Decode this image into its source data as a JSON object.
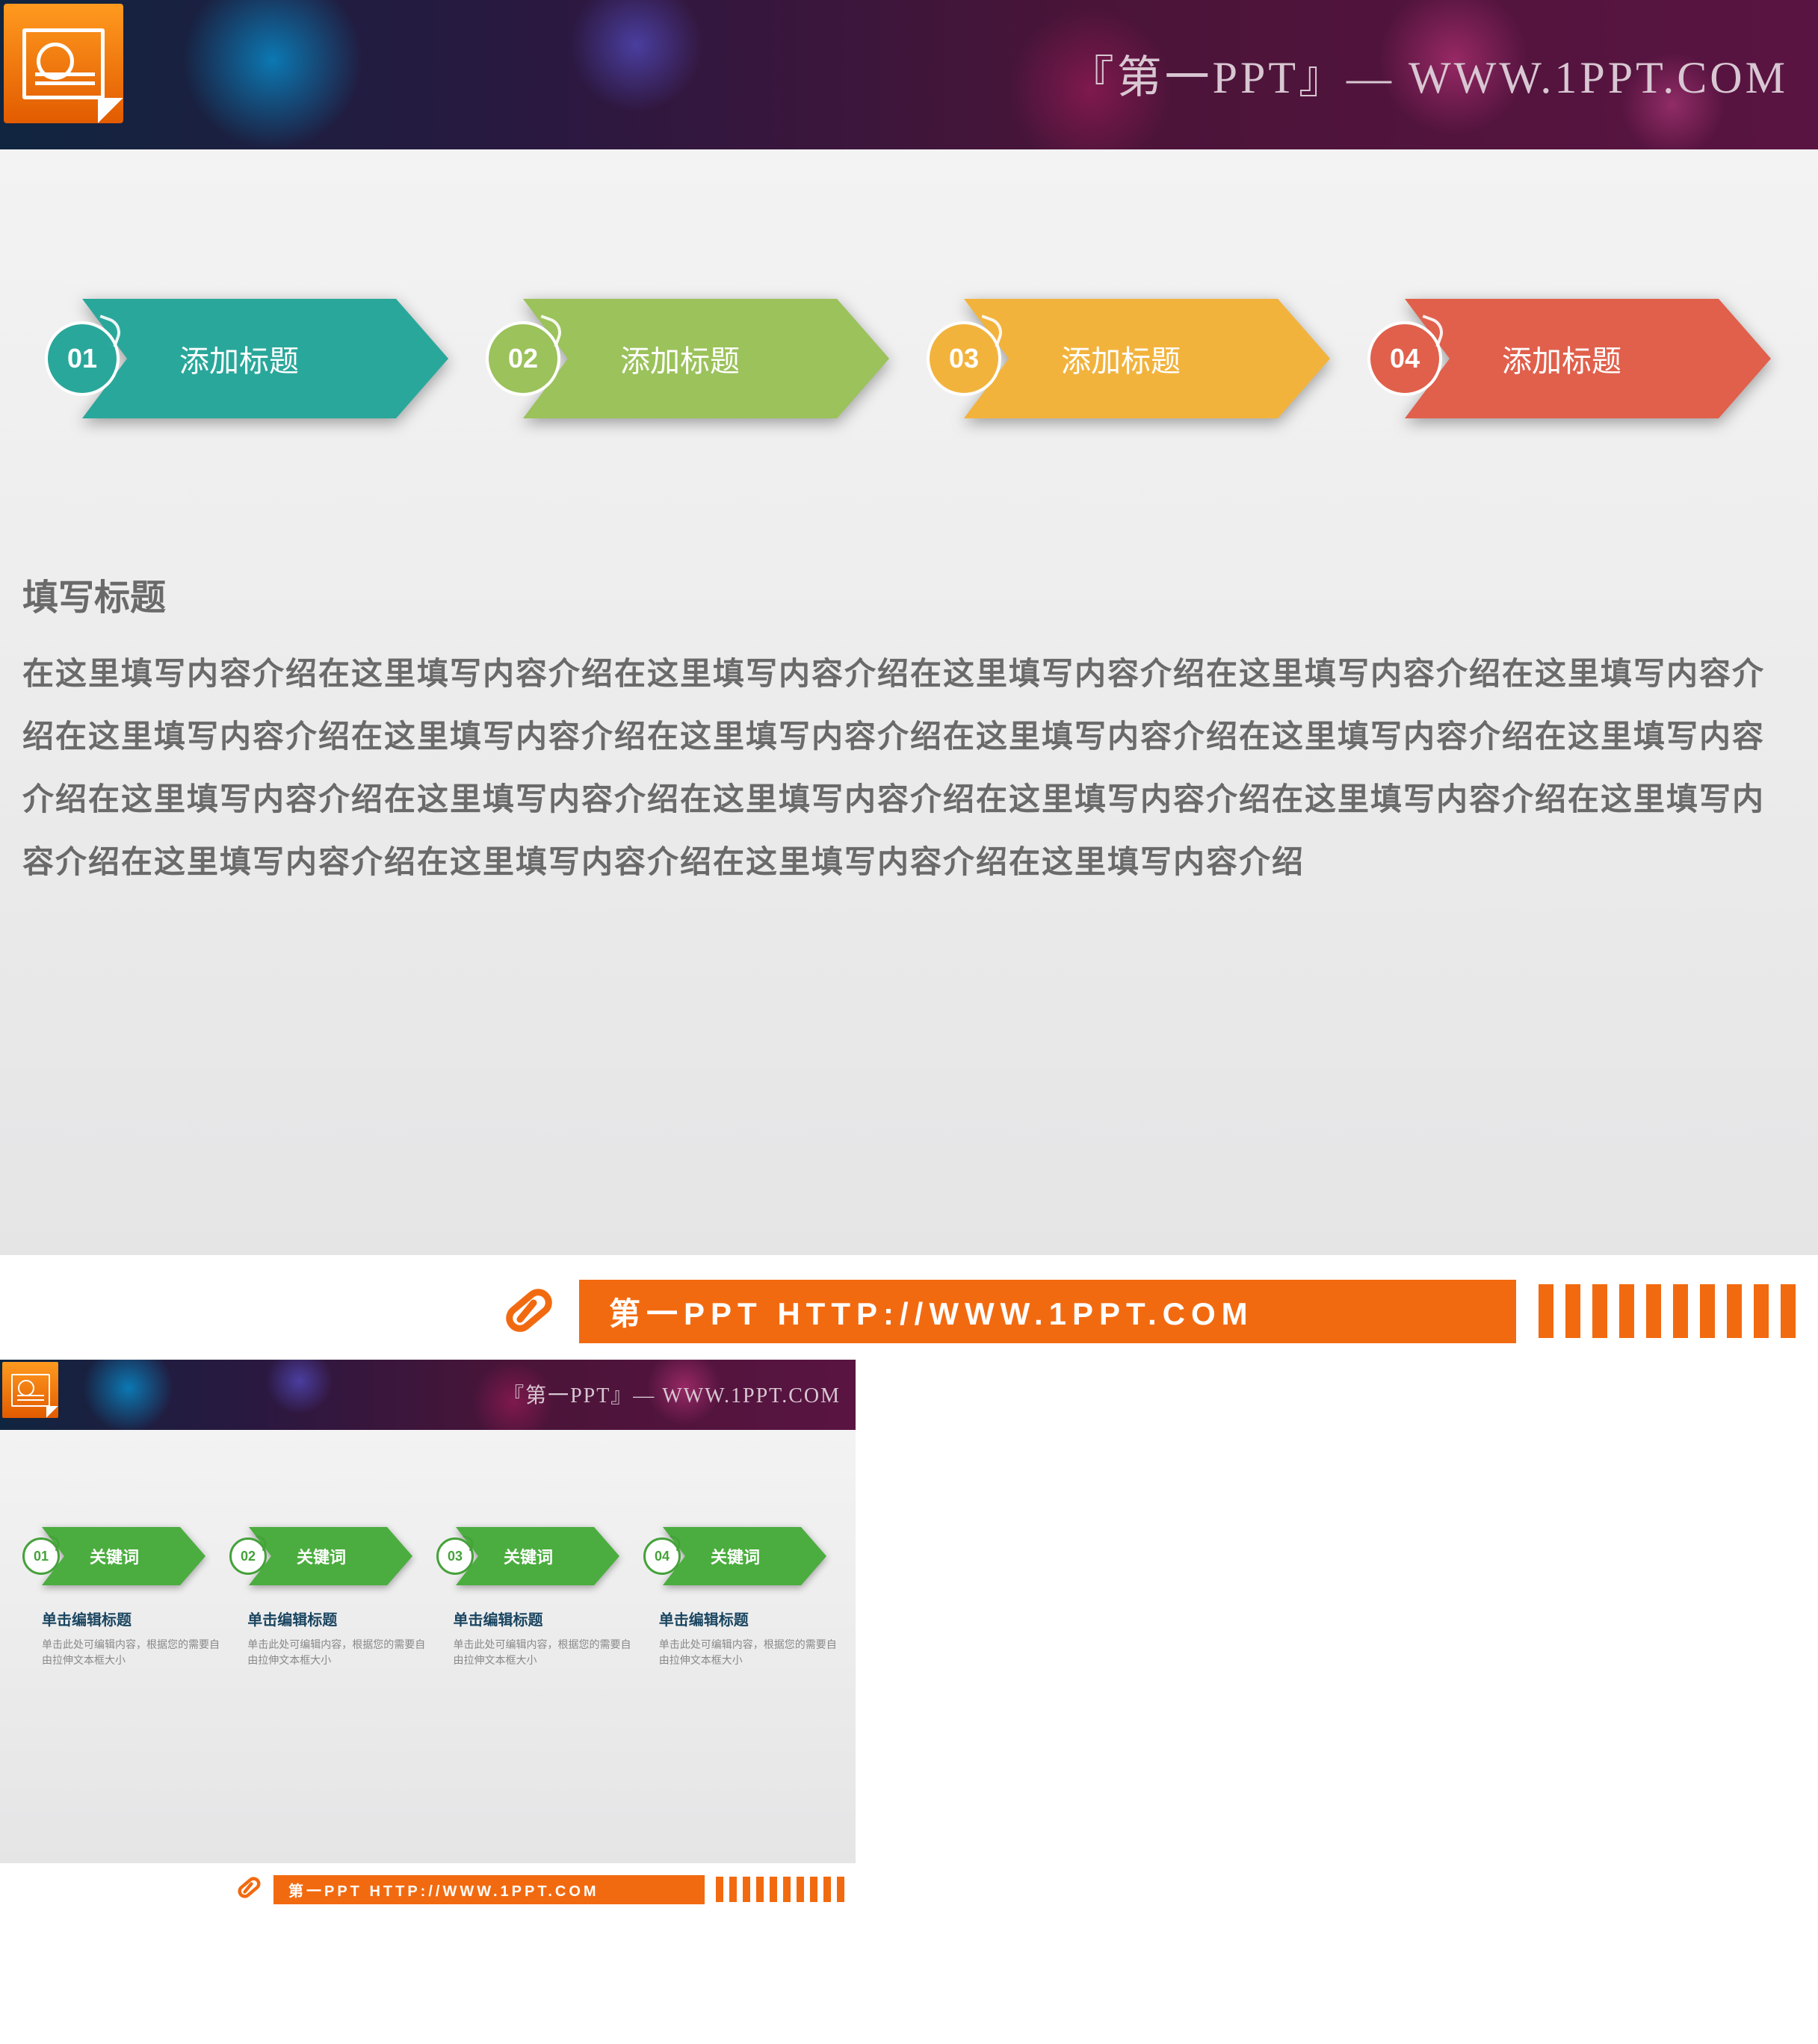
{
  "header": {
    "brand_text": "『第一PPT』— WWW.1PPT.COM",
    "icon_bg_top": "#ff9a1f",
    "icon_bg_bottom": "#e25b00"
  },
  "slide1": {
    "arrows": [
      {
        "num": "01",
        "label": "添加标题",
        "color": "#2aa79b",
        "circle_bg": "#2aa79b"
      },
      {
        "num": "02",
        "label": "添加标题",
        "color": "#9bc25b",
        "circle_bg": "#9bc25b"
      },
      {
        "num": "03",
        "label": "添加标题",
        "color": "#f2b33d",
        "circle_bg": "#f2b33d"
      },
      {
        "num": "04",
        "label": "添加标题",
        "color": "#e0604c",
        "circle_bg": "#e0604c"
      }
    ],
    "content_title": "填写标题",
    "content_body": "在这里填写内容介绍在这里填写内容介绍在这里填写内容介绍在这里填写内容介绍在这里填写内容介绍在这里填写内容介绍在这里填写内容介绍在这里填写内容介绍在这里填写内容介绍在这里填写内容介绍在这里填写内容介绍在这里填写内容介绍在这里填写内容介绍在这里填写内容介绍在这里填写内容介绍在这里填写内容介绍在这里填写内容介绍在这里填写内容介绍在这里填写内容介绍在这里填写内容介绍在这里填写内容介绍在这里填写内容介绍"
  },
  "footer": {
    "text": "第一PPT HTTP://WWW.1PPT.COM",
    "bar_color": "#f26a10",
    "stripe_count": 10
  },
  "slide2": {
    "arrow_color": "#4bad3f",
    "arrow_border": "#45a23a",
    "arrows": [
      {
        "num": "01",
        "label": "关键词"
      },
      {
        "num": "02",
        "label": "关键词"
      },
      {
        "num": "03",
        "label": "关键词"
      },
      {
        "num": "04",
        "label": "关键词"
      }
    ],
    "details": [
      {
        "title": "单击编辑标题",
        "body": "单击此处可编辑内容，根据您的需要自由拉伸文本框大小"
      },
      {
        "title": "单击编辑标题",
        "body": "单击此处可编辑内容，根据您的需要自由拉伸文本框大小"
      },
      {
        "title": "单击编辑标题",
        "body": "单击此处可编辑内容，根据您的需要自由拉伸文本框大小"
      },
      {
        "title": "单击编辑标题",
        "body": "单击此处可编辑内容，根据您的需要自由拉伸文本框大小"
      }
    ]
  },
  "styling": {
    "slide1_body_bg_top": "#f3f3f3",
    "slide1_body_bg_bottom": "#e5e5e6",
    "content_text_color": "#6a6a6a",
    "content_title_fontsize": 48,
    "content_body_fontsize": 42,
    "arrow_label_fontsize": 40,
    "arrow_num_fontsize": 36,
    "slide2_detail_title_color": "#1a4560",
    "slide2_detail_body_color": "#888888"
  }
}
